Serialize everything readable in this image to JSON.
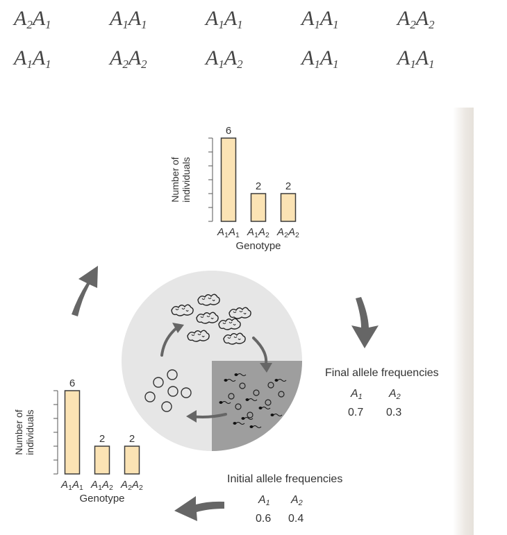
{
  "genotype_rows": [
    [
      "A2A1",
      "A1A1",
      "A1A1",
      "A1A1",
      "A2A2"
    ],
    [
      "A1A1",
      "A2A2",
      "A1A2",
      "A1A1",
      "A1A1"
    ]
  ],
  "top_chart": {
    "ylabel": "Number of individuals",
    "xlabel": "Genotype",
    "categories": [
      "A1A1",
      "A1A2",
      "A2A2"
    ],
    "values": [
      6,
      2,
      2
    ]
  },
  "bottom_chart": {
    "ylabel": "Number of individuals",
    "xlabel": "Genotype",
    "categories": [
      "A1A1",
      "A1A2",
      "A2A2"
    ],
    "values": [
      6,
      2,
      2
    ]
  },
  "final_freqs": {
    "title": "Final allele frequencies",
    "headers": [
      "A1",
      "A2"
    ],
    "values": [
      "0.7",
      "0.3"
    ]
  },
  "initial_freqs": {
    "title": "Initial allele frequencies",
    "headers": [
      "A1",
      "A2"
    ],
    "values": [
      "0.6",
      "0.4"
    ]
  },
  "colors": {
    "bar_fill": "#fbe3b4",
    "bar_stroke": "#3a3a3a",
    "circle_light": "#e6e6e6",
    "circle_dark": "#9e9e9e",
    "arrow": "#666666"
  }
}
